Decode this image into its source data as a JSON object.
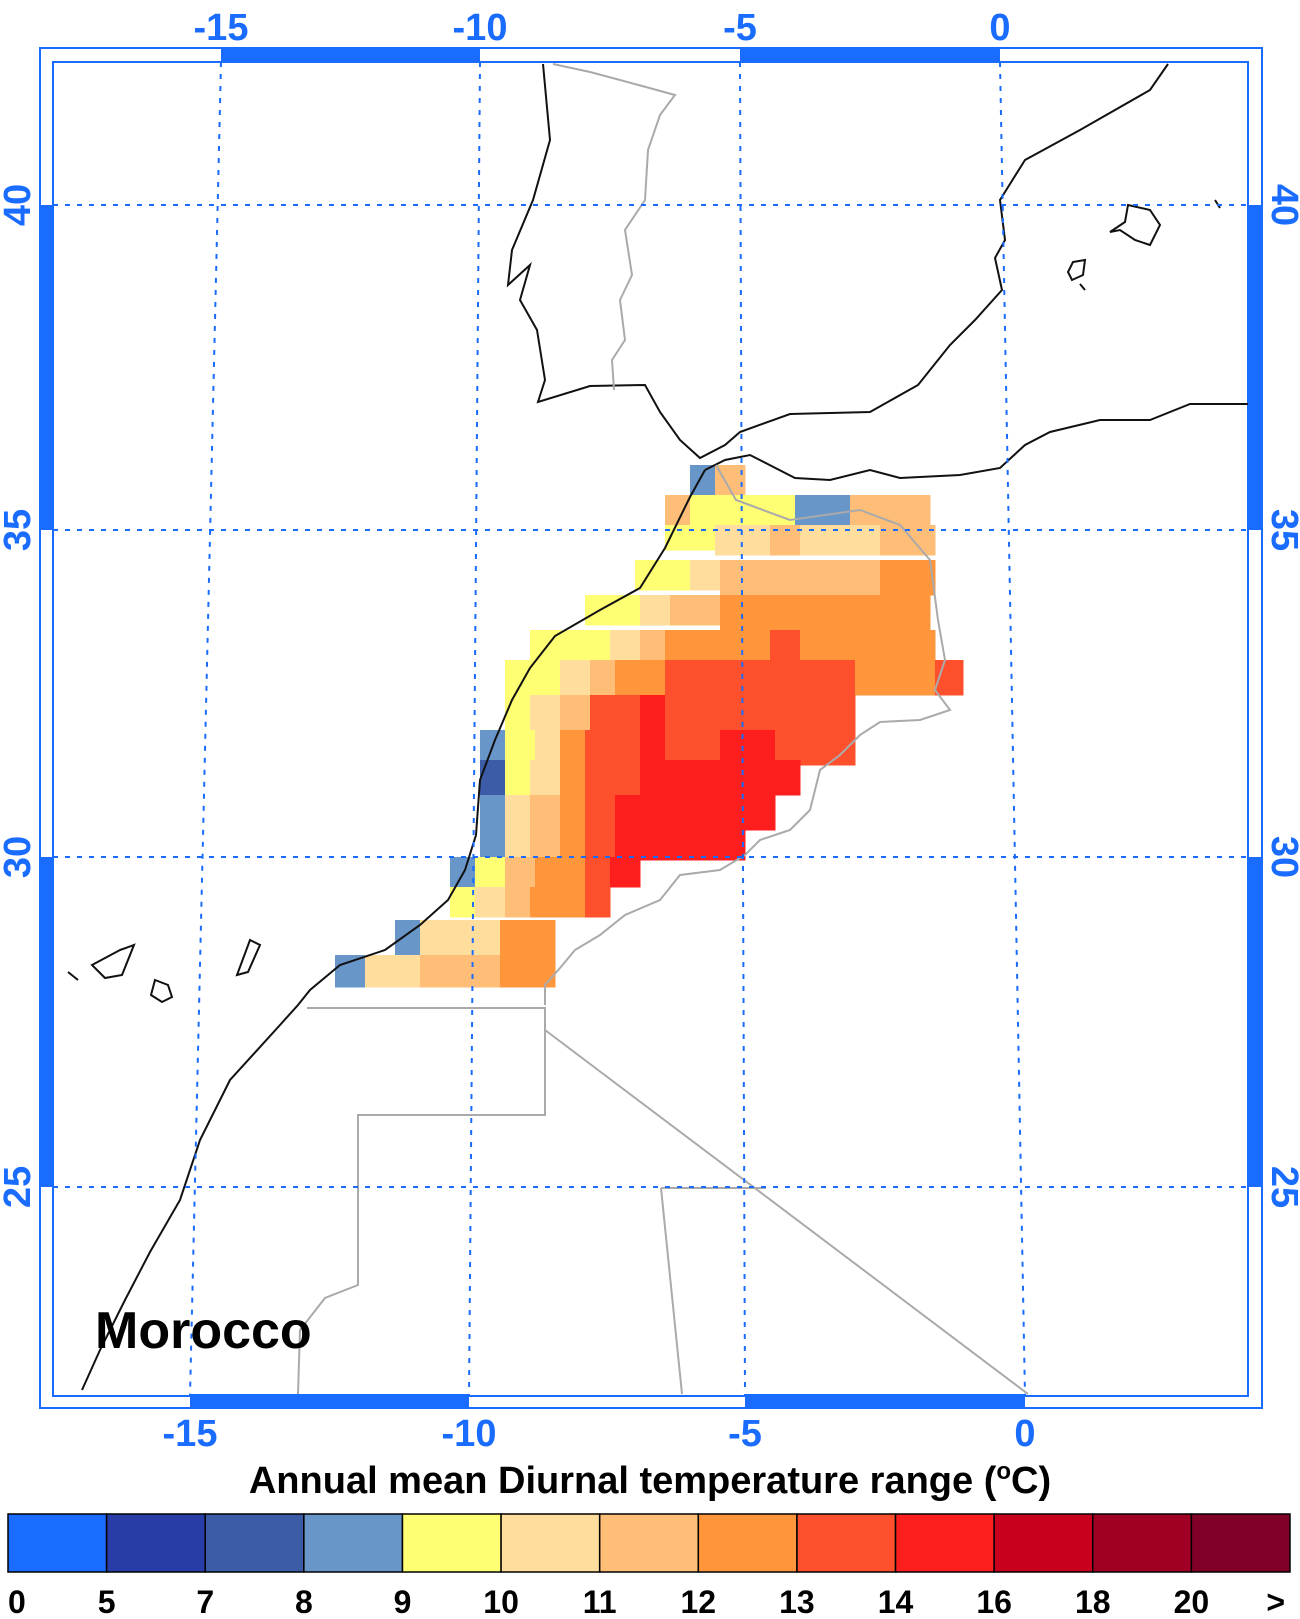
{
  "map": {
    "region_label": "Morocco",
    "caption": "Annual mean Diurnal temperature range (",
    "caption_sup": "o",
    "caption_end": "C)",
    "top_axis_ticks": [
      "-15",
      "-10",
      "-5",
      "0"
    ],
    "bottom_axis_ticks": [
      "-15",
      "-10",
      "-5",
      "0"
    ],
    "left_axis_ticks": [
      "40",
      "35",
      "30",
      "25"
    ],
    "right_axis_ticks": [
      "40",
      "35",
      "30",
      "25"
    ],
    "axis_color": "#1a6cff",
    "colorbar": {
      "colors": [
        "#1a6cff",
        "#283da8",
        "#3c5ca8",
        "#6996c8",
        "#ffff73",
        "#ffdd9c",
        "#ffbe78",
        "#ff963c",
        "#ff502d",
        "#ff1e1e",
        "#c8001e",
        "#a00023",
        "#800028"
      ],
      "labels": [
        "0",
        "5",
        "7",
        "8",
        "9",
        "10",
        "11",
        "12",
        "13",
        "14",
        "16",
        "18",
        "20",
        ">"
      ]
    }
  }
}
